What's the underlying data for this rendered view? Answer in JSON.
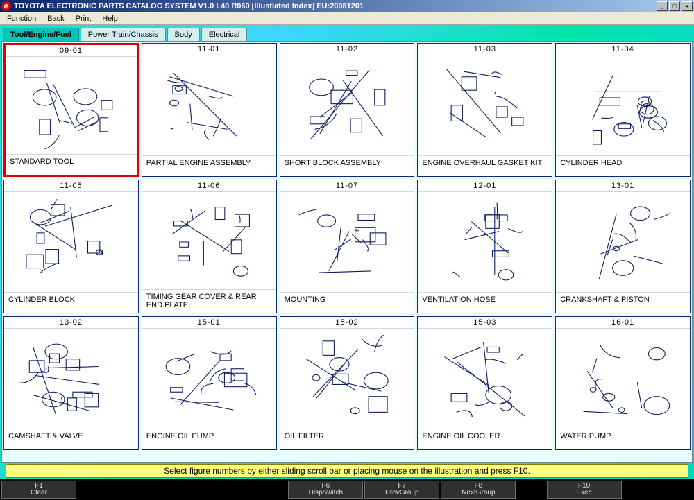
{
  "window": {
    "title": "TOYOTA ELECTRONIC PARTS CATALOG SYSTEM V1.0 L40 R060 [Illustlated Index] EU:20081201",
    "icon_glyph": "⊕"
  },
  "menu": {
    "items": [
      "Function",
      "Back",
      "Print",
      "Help"
    ]
  },
  "tabs": [
    {
      "label": "Tool/Engine/Fuel",
      "active": true
    },
    {
      "label": "Power Train/Chassis",
      "active": false
    },
    {
      "label": "Body",
      "active": false
    },
    {
      "label": "Electrical",
      "active": false
    }
  ],
  "cards": [
    {
      "code": "09-01",
      "label": "STANDARD TOOL",
      "selected": true
    },
    {
      "code": "11-01",
      "label": "PARTIAL ENGINE ASSEMBLY",
      "selected": false
    },
    {
      "code": "11-02",
      "label": "SHORT BLOCK ASSEMBLY",
      "selected": false
    },
    {
      "code": "11-03",
      "label": "ENGINE OVERHAUL GASKET KIT",
      "selected": false
    },
    {
      "code": "11-04",
      "label": "CYLINDER HEAD",
      "selected": false
    },
    {
      "code": "11-05",
      "label": "CYLINDER BLOCK",
      "selected": false
    },
    {
      "code": "11-06",
      "label": "TIMING GEAR COVER & REAR END PLATE",
      "selected": false
    },
    {
      "code": "11-07",
      "label": "MOUNTING",
      "selected": false
    },
    {
      "code": "12-01",
      "label": "VENTILATION HOSE",
      "selected": false
    },
    {
      "code": "13-01",
      "label": "CRANKSHAFT & PISTON",
      "selected": false
    },
    {
      "code": "13-02",
      "label": "CAMSHAFT & VALVE",
      "selected": false
    },
    {
      "code": "15-01",
      "label": "ENGINE OIL PUMP",
      "selected": false
    },
    {
      "code": "15-02",
      "label": "OIL FILTER",
      "selected": false
    },
    {
      "code": "15-03",
      "label": "ENGINE OIL COOLER",
      "selected": false
    },
    {
      "code": "16-01",
      "label": "WATER PUMP",
      "selected": false
    }
  ],
  "hint": "Select figure numbers by either sliding scroll bar or placing mouse on the illustration and press F10.",
  "fkeys": [
    {
      "key": "F1",
      "label": "Clear"
    },
    {
      "key": "F6",
      "label": "DispSwitch"
    },
    {
      "key": "F7",
      "label": "PrevGroup"
    },
    {
      "key": "F8",
      "label": "NextGroup"
    },
    {
      "key": "F10",
      "label": "Exec"
    }
  ],
  "style": {
    "selected_border_color": "#e00000",
    "card_border_color": "#0a2a80",
    "workspace_gradient": [
      "#14e0d0",
      "#3dd6ff",
      "#00e5a8",
      "#15d5e8",
      "#00d8c0"
    ],
    "diagram_stroke": "#0a1a60",
    "titlebar_gradient": [
      "#08246b",
      "#a6caf0"
    ]
  }
}
